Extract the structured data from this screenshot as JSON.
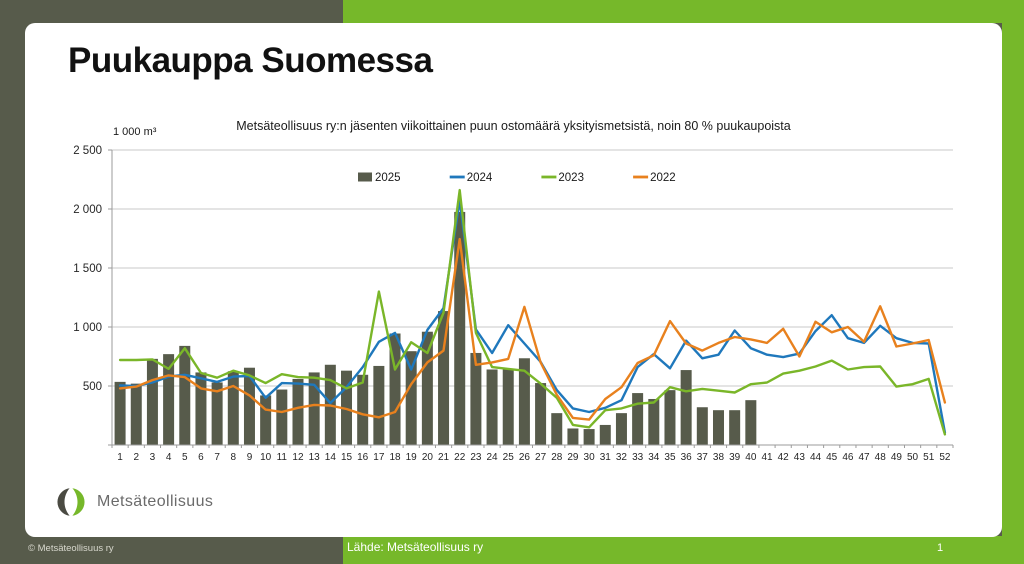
{
  "frame": {
    "title": "Puukauppa Suomessa",
    "logo_text": "Metsäteollisuus",
    "copyright": "© Metsäteollisuus ry",
    "source": "Lähde: Metsäteollisuus ry",
    "page_number": "1",
    "colors": {
      "frame_dark": "#575B4B",
      "accent_green": "#76B82A",
      "logo_dark": "#4A4A42",
      "logo_green": "#76B82A"
    }
  },
  "chart_data": {
    "type": "bar",
    "title": "Metsäteollisuus ry:n jäsenten viikoittainen puun ostomäärä yksityismetsistä, noin 80 % puukaupoista",
    "unit_label": "1 000 m³",
    "xlabel": "",
    "ylabel": "1 000 m³",
    "ylim": [
      0,
      2500
    ],
    "ytick_step": 500,
    "grid": true,
    "legend_position": "top-center",
    "grid_color": "#C9C9C9",
    "axis_color": "#9B9B9B",
    "tick_label_color": "#262626",
    "x": [
      1,
      2,
      3,
      4,
      5,
      6,
      7,
      8,
      9,
      10,
      11,
      12,
      13,
      14,
      15,
      16,
      17,
      18,
      19,
      20,
      21,
      22,
      23,
      24,
      25,
      26,
      27,
      28,
      29,
      30,
      31,
      32,
      33,
      34,
      35,
      36,
      37,
      38,
      39,
      40,
      41,
      42,
      43,
      44,
      45,
      46,
      47,
      48,
      49,
      50,
      51,
      52
    ],
    "series": [
      {
        "name": "2025",
        "type": "bar",
        "color": "#575B4B",
        "values": [
          535,
          520,
          730,
          770,
          840,
          615,
          530,
          625,
          655,
          420,
          470,
          560,
          615,
          680,
          630,
          595,
          670,
          945,
          795,
          960,
          1135,
          1975,
          780,
          640,
          645,
          735,
          525,
          270,
          140,
          135,
          170,
          270,
          440,
          390,
          465,
          635,
          320,
          295,
          295,
          380
        ]
      },
      {
        "name": "2024",
        "type": "line",
        "color": "#1F78BC",
        "values": [
          505,
          500,
          530,
          580,
          595,
          565,
          535,
          580,
          585,
          400,
          525,
          520,
          510,
          355,
          490,
          660,
          875,
          950,
          640,
          975,
          1160,
          2075,
          980,
          780,
          1015,
          860,
          705,
          465,
          310,
          280,
          315,
          380,
          660,
          770,
          650,
          885,
          735,
          765,
          970,
          820,
          765,
          745,
          775,
          965,
          1100,
          905,
          865,
          1010,
          905,
          865,
          860,
          105
        ]
      },
      {
        "name": "2023",
        "type": "line",
        "color": "#7AB629",
        "values": [
          720,
          720,
          725,
          645,
          820,
          610,
          570,
          630,
          590,
          525,
          600,
          575,
          570,
          550,
          480,
          530,
          1300,
          640,
          870,
          780,
          1120,
          2160,
          950,
          660,
          645,
          630,
          520,
          400,
          170,
          150,
          295,
          310,
          350,
          360,
          490,
          455,
          475,
          460,
          445,
          515,
          530,
          605,
          630,
          665,
          715,
          640,
          660,
          665,
          495,
          515,
          560,
          90
        ]
      },
      {
        "name": "2022",
        "type": "line",
        "color": "#E8811E",
        "values": [
          480,
          495,
          550,
          590,
          575,
          480,
          455,
          500,
          420,
          300,
          280,
          315,
          340,
          335,
          305,
          260,
          235,
          280,
          515,
          700,
          800,
          1745,
          680,
          700,
          730,
          1170,
          700,
          425,
          230,
          215,
          390,
          490,
          695,
          760,
          1050,
          860,
          800,
          865,
          915,
          895,
          865,
          985,
          750,
          1045,
          955,
          1000,
          875,
          1175,
          835,
          860,
          890,
          360
        ]
      }
    ]
  }
}
